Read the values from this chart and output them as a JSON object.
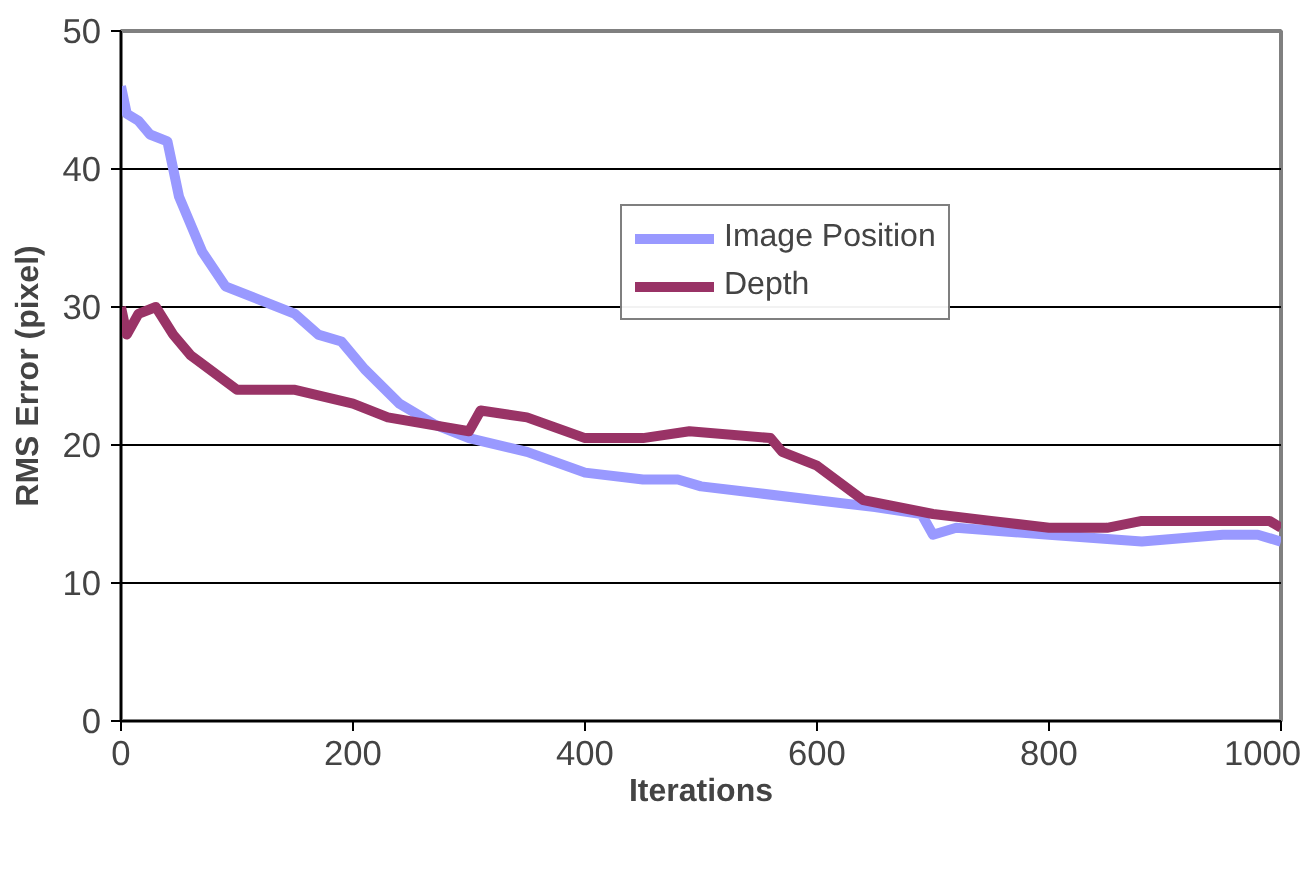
{
  "chart_data": {
    "type": "line",
    "xlabel": "Iterations",
    "ylabel": "RMS Error (pixel)",
    "xlim": [
      0,
      1000
    ],
    "ylim": [
      0,
      50
    ],
    "xticks": [
      0,
      200,
      400,
      600,
      800,
      1000
    ],
    "yticks": [
      0,
      10,
      20,
      30,
      40,
      50
    ],
    "grid": "y",
    "legend": "top right",
    "marker": "none",
    "line_style": "solid",
    "series": [
      {
        "name": "Image Position",
        "color": "#9999ff",
        "x": [
          0,
          5,
          15,
          25,
          40,
          50,
          70,
          90,
          120,
          150,
          170,
          190,
          210,
          240,
          270,
          300,
          350,
          400,
          450,
          480,
          500,
          550,
          600,
          650,
          690,
          700,
          720,
          800,
          880,
          950,
          980,
          1000
        ],
        "values": [
          46,
          44,
          43.5,
          42.5,
          42,
          38,
          34,
          31.5,
          30.5,
          29.5,
          28,
          27.5,
          25.5,
          23,
          21.5,
          20.5,
          19.5,
          18,
          17.5,
          17.5,
          17,
          16.5,
          16,
          15.5,
          15,
          13.5,
          14,
          13.5,
          13,
          13.5,
          13.5,
          13
        ]
      },
      {
        "name": "Depth",
        "color": "#993366",
        "x": [
          0,
          5,
          15,
          30,
          45,
          60,
          100,
          150,
          200,
          230,
          300,
          310,
          350,
          400,
          450,
          490,
          560,
          570,
          600,
          640,
          700,
          750,
          800,
          850,
          880,
          950,
          990,
          1000
        ],
        "values": [
          30,
          28,
          29.5,
          30,
          28,
          26.5,
          24,
          24,
          23,
          22,
          21,
          22.5,
          22,
          20.5,
          20.5,
          21,
          20.5,
          19.5,
          18.5,
          16,
          15,
          14.5,
          14,
          14,
          14.5,
          14.5,
          14.5,
          14
        ]
      }
    ]
  }
}
